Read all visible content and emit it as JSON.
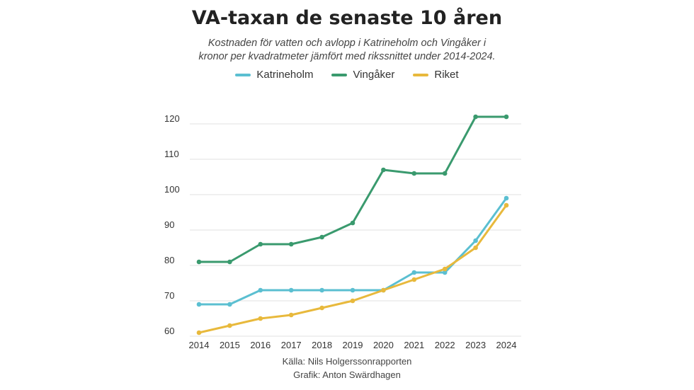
{
  "chart_data": {
    "type": "line",
    "title": "VA-taxan de senaste 10 åren",
    "subtitle_lines": [
      "Kostnaden för vatten och avlopp i Katrineholm och Vingåker i",
      "kronor per kvadratmeter jämfört med rikssnittet under 2014-2024."
    ],
    "x": [
      "2014",
      "2015",
      "2016",
      "2017",
      "2018",
      "2019",
      "2020",
      "2021",
      "2022",
      "2023",
      "2024"
    ],
    "series": [
      {
        "name": "Katrineholm",
        "color": "#5bbfd1",
        "values": [
          69,
          69,
          73,
          73,
          73,
          73,
          73,
          78,
          78,
          87,
          99
        ]
      },
      {
        "name": "Vingåker",
        "color": "#3a9a6e",
        "values": [
          81,
          81,
          86,
          86,
          88,
          92,
          107,
          106,
          106,
          122,
          122
        ]
      },
      {
        "name": "Riket",
        "color": "#e8b93c",
        "values": [
          61,
          63,
          65,
          66,
          68,
          70,
          73,
          76,
          79,
          85,
          97
        ]
      }
    ],
    "yticks": [
      60,
      70,
      80,
      90,
      100,
      110,
      120
    ],
    "ylim": [
      60,
      122
    ],
    "grid": true,
    "legend_position": "top-center",
    "source_lines": [
      "Källa: Nils Holgerssonrapporten",
      "Grafik: Anton Swärdhagen"
    ]
  }
}
